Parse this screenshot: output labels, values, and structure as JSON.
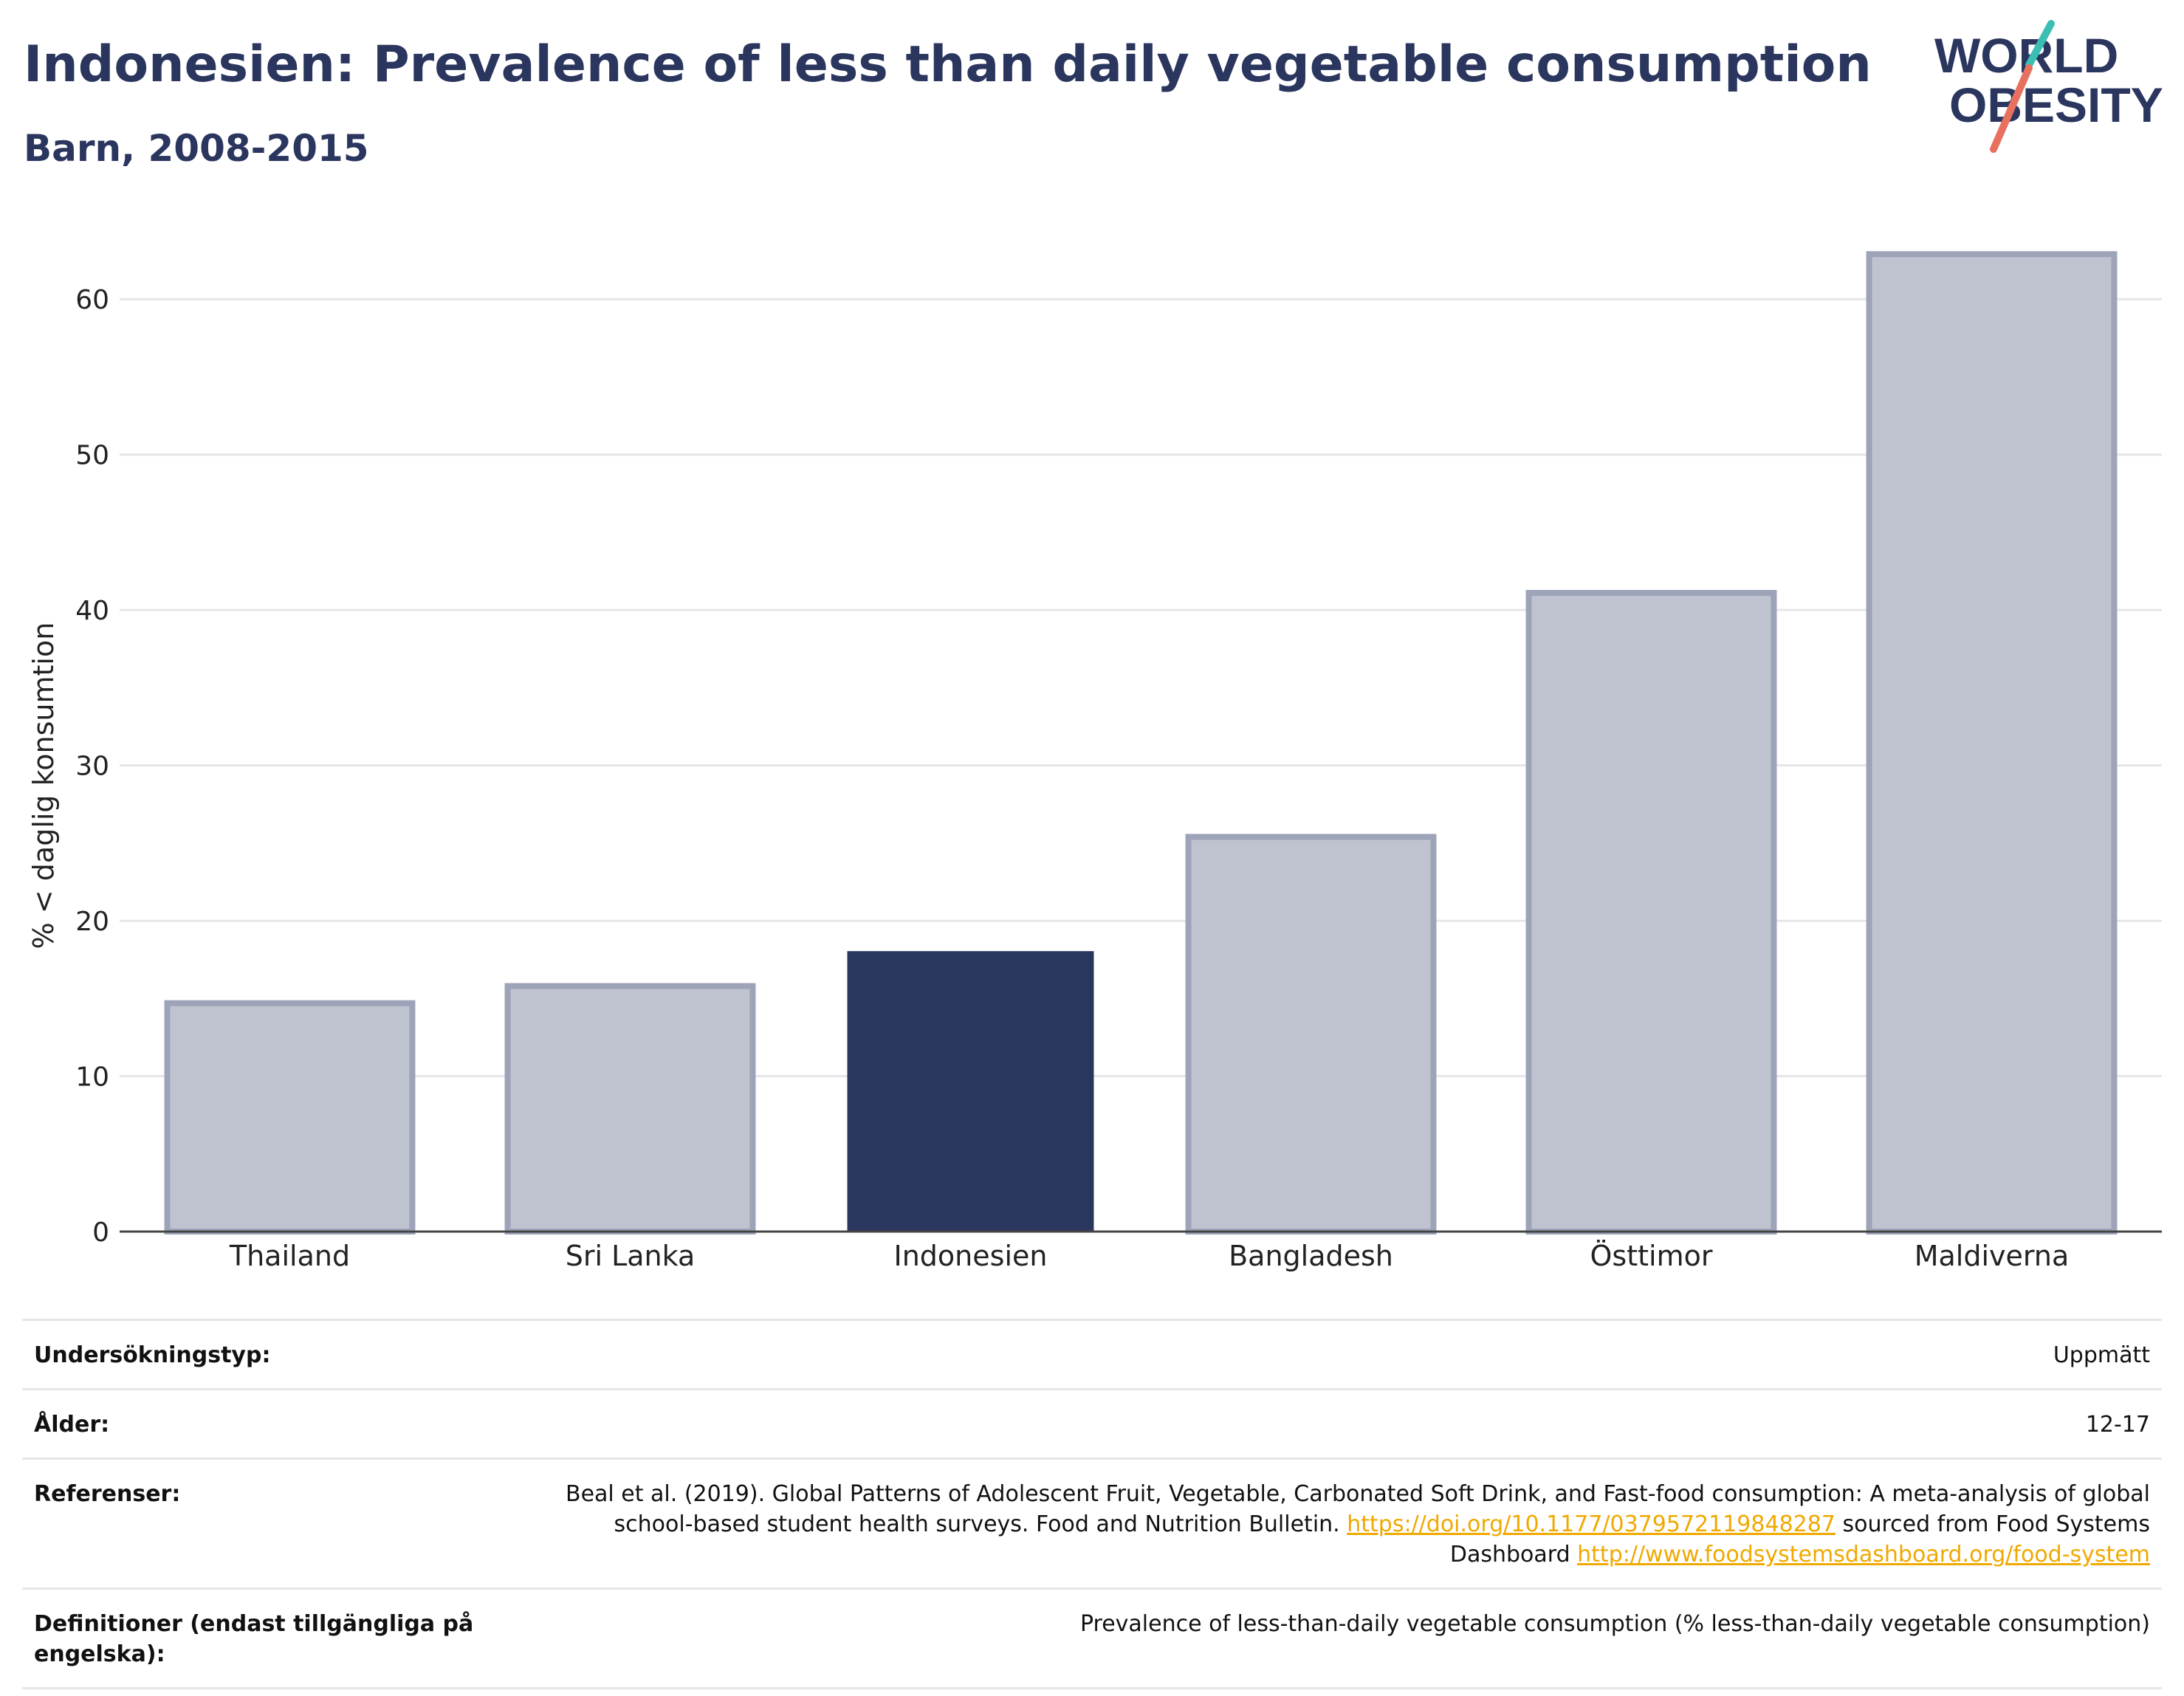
{
  "header": {
    "title": "Indonesien: Prevalence of less than daily vegetable consumption",
    "subtitle": "Barn, 2008-2015"
  },
  "logo": {
    "line1": "WORLD",
    "line2": "OBESITY",
    "colors": {
      "text": "#2b365f",
      "slash_teal": "#3bbfb5",
      "slash_coral": "#e8705f"
    }
  },
  "chart_data": {
    "type": "bar",
    "ylabel": "% < daglig konsumtion",
    "xlabel": "",
    "ylim": [
      0,
      65
    ],
    "yticks": [
      0,
      10,
      20,
      30,
      40,
      50,
      60
    ],
    "grid": true,
    "categories": [
      "Thailand",
      "Sri Lanka",
      "Indonesien",
      "Bangladesh",
      "Östtimor",
      "Maldiverna"
    ],
    "values": [
      14.7,
      15.8,
      18.0,
      25.4,
      41.1,
      62.9
    ],
    "highlight": "Indonesien",
    "colors": {
      "highlight": "#2b365f",
      "other_fill": "#bfc3cf",
      "other_stroke": "#9da3b8"
    }
  },
  "info": {
    "rows": [
      {
        "label": "Undersökningstyp:",
        "value": "Uppmätt"
      },
      {
        "label": "Ålder:",
        "value": "12-17"
      },
      {
        "label": "Referenser:",
        "value_part1": "Beal et al. (2019). Global Patterns of Adolescent Fruit, Vegetable, Carbonated Soft Drink, and Fast-food consumption: A meta-analysis of global school-based student health surveys. Food and Nutrition Bulletin. ",
        "link1": "https://doi.org/10.1177/0379572119848287",
        "value_part2": " sourced from Food Systems Dashboard ",
        "link2": "http://www.foodsystemsdashboard.org/food-system"
      },
      {
        "label": "Definitioner (endast tillgängliga på engelska):",
        "value": "Prevalence of less-than-daily vegetable consumption (% less-than-daily vegetable consumption)"
      }
    ]
  }
}
